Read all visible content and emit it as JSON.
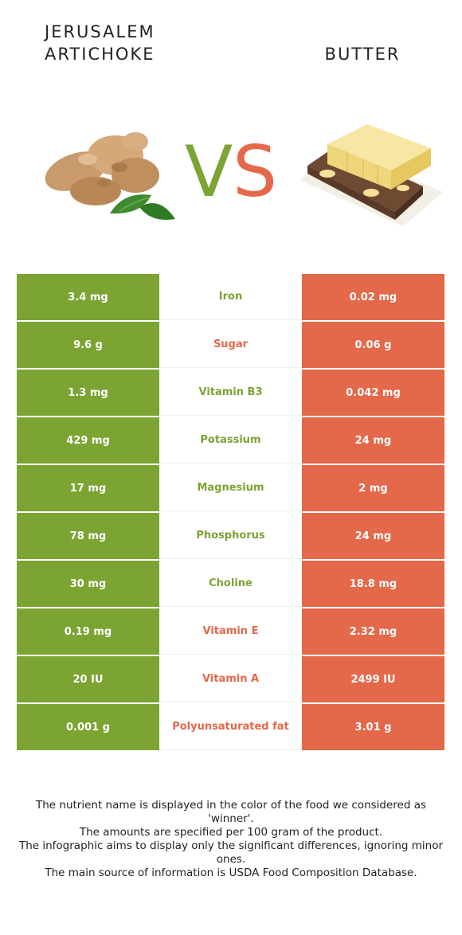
{
  "header": {
    "left_title_line1": "Jerusalem",
    "left_title_line2": "artichoke",
    "right_title": "Butter",
    "vs_v": "V",
    "vs_s": "S"
  },
  "colors": {
    "left": "#7ba433",
    "right": "#e4684a"
  },
  "rows": [
    {
      "left": "3.4 mg",
      "nutrient": "Iron",
      "right": "0.02 mg",
      "winner": "left"
    },
    {
      "left": "9.6 g",
      "nutrient": "Sugar",
      "right": "0.06 g",
      "winner": "right"
    },
    {
      "left": "1.3 mg",
      "nutrient": "Vitamin B3",
      "right": "0.042 mg",
      "winner": "left"
    },
    {
      "left": "429 mg",
      "nutrient": "Potassium",
      "right": "24 mg",
      "winner": "left"
    },
    {
      "left": "17 mg",
      "nutrient": "Magnesium",
      "right": "2 mg",
      "winner": "left"
    },
    {
      "left": "78 mg",
      "nutrient": "Phosphorus",
      "right": "24 mg",
      "winner": "left"
    },
    {
      "left": "30 mg",
      "nutrient": "Choline",
      "right": "18.8 mg",
      "winner": "left"
    },
    {
      "left": "0.19 mg",
      "nutrient": "Vitamin E",
      "right": "2.32 mg",
      "winner": "right"
    },
    {
      "left": "20 IU",
      "nutrient": "Vitamin A",
      "right": "2499 IU",
      "winner": "right"
    },
    {
      "left": "0.001 g",
      "nutrient": "Polyunsaturated fat",
      "right": "3.01 g",
      "winner": "right"
    }
  ],
  "footer": {
    "line1": "The nutrient name is displayed in the color of the food we considered as 'winner'.",
    "line2": "The amounts are specified per 100 gram of the product.",
    "line3": "The infographic aims to display only the significant differences, ignoring minor ones.",
    "line4": "The main source of information is USDA Food Composition Database."
  }
}
